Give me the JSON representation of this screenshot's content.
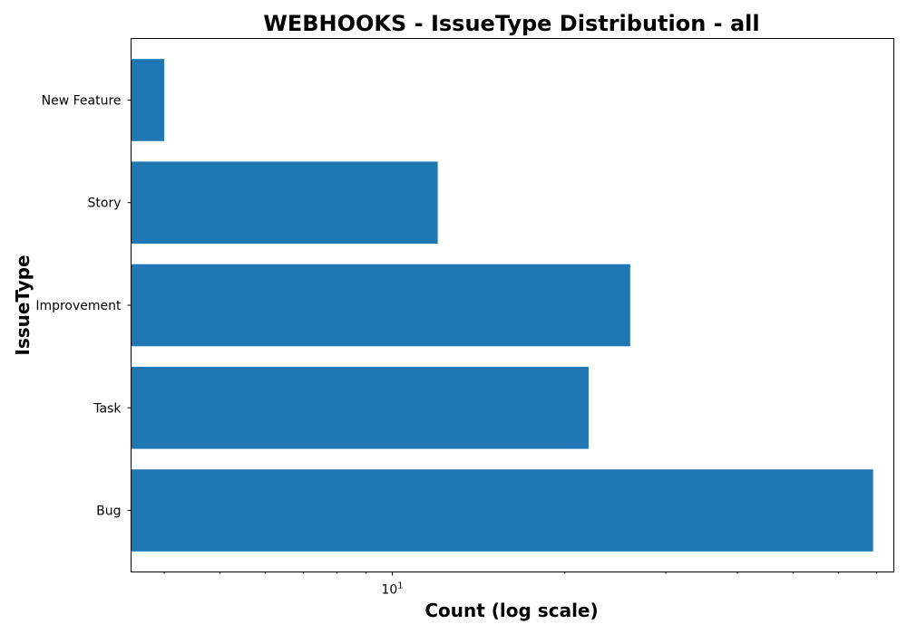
{
  "chart_data": {
    "type": "bar",
    "orientation": "horizontal",
    "title": "WEBHOOKS - IssueType Distribution - all",
    "xlabel": "Count (log scale)",
    "ylabel": "IssueType",
    "x_scale": "log",
    "xlim": [
      3.5,
      75
    ],
    "x_major_ticks": [
      {
        "value": 10,
        "label": "10",
        "superscript": "1"
      }
    ],
    "x_minor_ticks": [
      4,
      5,
      6,
      7,
      8,
      9,
      20,
      30,
      40,
      50,
      60,
      70
    ],
    "categories": [
      "Bug",
      "Task",
      "Improvement",
      "Story",
      "New Feature"
    ],
    "values": [
      69,
      22,
      26,
      12,
      4
    ],
    "color": "#1f77b4",
    "grid": false,
    "legend": false
  }
}
